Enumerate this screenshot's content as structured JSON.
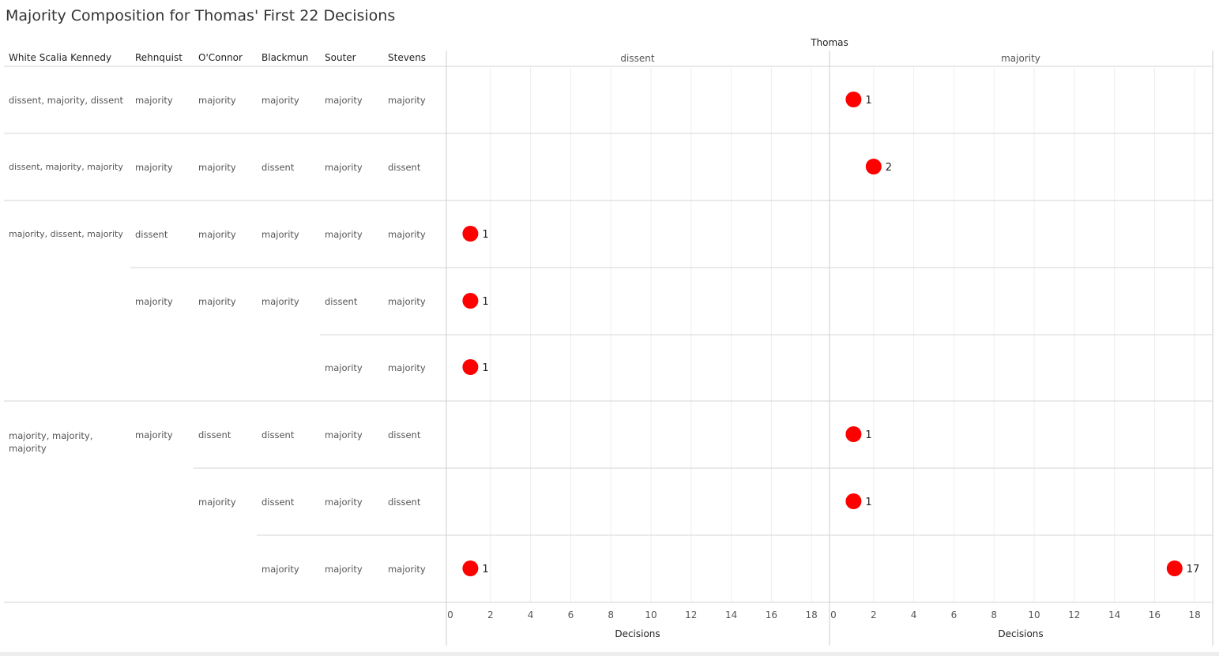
{
  "title": "Majority Composition for Thomas' First 22 Decisions",
  "row_headers": [
    "White Scalia Kennedy",
    "Rehnquist",
    "O'Connor",
    "Blackmun",
    "Souter",
    "Stevens"
  ],
  "rows": [
    {
      "wsk": "dissent, majority, dissent",
      "rehnquist": "majority",
      "oconnor": "majority",
      "blackmun": "majority",
      "souter": "majority",
      "stevens": "majority"
    },
    {
      "wsk": "dissent, majority, majority",
      "rehnquist": "majority",
      "oconnor": "majority",
      "blackmun": "dissent",
      "souter": "majority",
      "stevens": "dissent"
    },
    {
      "wsk": "majority, dissent, majority",
      "rehnquist": "dissent",
      "oconnor": "majority",
      "blackmun": "majority",
      "souter": "majority",
      "stevens": "majority"
    },
    {
      "wsk": "",
      "rehnquist": "majority",
      "oconnor": "majority",
      "blackmun": "majority",
      "souter": "dissent",
      "stevens": "majority"
    },
    {
      "wsk": "",
      "rehnquist": "",
      "oconnor": "",
      "blackmun": "",
      "souter": "majority",
      "stevens": "majority"
    },
    {
      "wsk": "majority, majority, majority",
      "rehnquist": "majority",
      "oconnor": "dissent",
      "blackmun": "dissent",
      "souter": "majority",
      "stevens": "dissent"
    },
    {
      "wsk": "",
      "rehnquist": "",
      "oconnor": "majority",
      "blackmun": "dissent",
      "souter": "majority",
      "stevens": "dissent"
    },
    {
      "wsk": "",
      "rehnquist": "",
      "oconnor": "",
      "blackmun": "majority",
      "souter": "majority",
      "stevens": "majority"
    }
  ],
  "chart_data": {
    "type": "scatter",
    "title": "Majority Composition for Thomas' First 22 Decisions",
    "column_header": "Thomas",
    "panels": [
      "dissent",
      "majority"
    ],
    "xlabel": "Decisions",
    "xlim": [
      0,
      19
    ],
    "ticks": [
      0,
      2,
      4,
      6,
      8,
      10,
      12,
      14,
      16,
      18
    ],
    "grid": true,
    "mark_color": "#ff0000",
    "points": [
      {
        "row": 0,
        "panel": "majority",
        "value": 1
      },
      {
        "row": 1,
        "panel": "majority",
        "value": 2
      },
      {
        "row": 2,
        "panel": "dissent",
        "value": 1
      },
      {
        "row": 3,
        "panel": "dissent",
        "value": 1
      },
      {
        "row": 4,
        "panel": "dissent",
        "value": 1
      },
      {
        "row": 5,
        "panel": "majority",
        "value": 1
      },
      {
        "row": 6,
        "panel": "majority",
        "value": 1
      },
      {
        "row": 7,
        "panel": "dissent",
        "value": 1
      },
      {
        "row": 7,
        "panel": "majority",
        "value": 17
      }
    ]
  }
}
